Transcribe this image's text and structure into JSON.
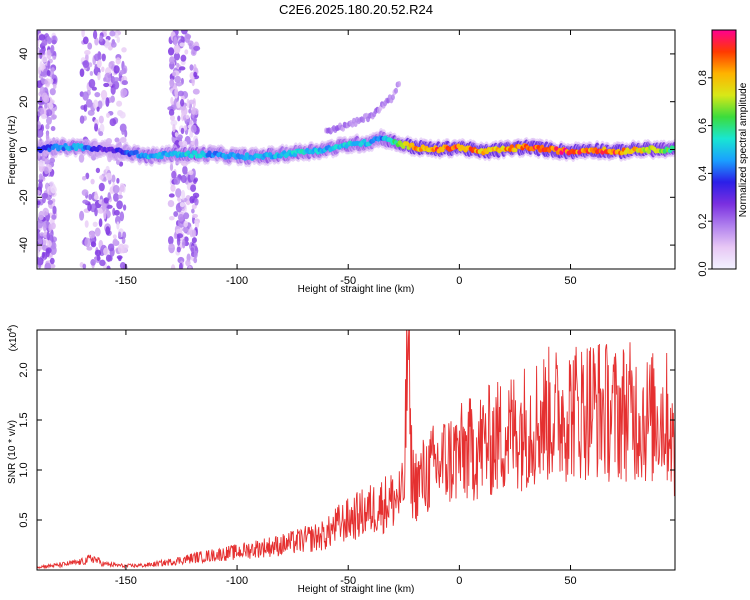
{
  "figure": {
    "title": "C2E6.2025.180.20.52.R24"
  },
  "colors": {
    "snr_line": "#e53030",
    "colormap": [
      "#f2f2ff",
      "#e8c8f5",
      "#b080ee",
      "#7a2fe0",
      "#2b1fe8",
      "#1aa0ff",
      "#19e6d2",
      "#3cdc3c",
      "#d8e818",
      "#ffb300",
      "#ff3a00",
      "#ff0090"
    ]
  },
  "chart_data": [
    {
      "type": "heatmap",
      "title": "C2E6.2025.180.20.52.R24",
      "xlabel": "Height of straight line (km)",
      "ylabel": "Frequency (Hz)",
      "xlim": [
        -190,
        97
      ],
      "ylim": [
        -50,
        50
      ],
      "xticks": [
        -150,
        -100,
        -50,
        0,
        50
      ],
      "xtick_labels": [
        "-150",
        "-100",
        "-50",
        "0",
        "50"
      ],
      "yticks": [
        -40,
        -20,
        0,
        20,
        40
      ],
      "ytick_labels": [
        "-40",
        "-20",
        "0",
        "20",
        "40"
      ],
      "colorbar": {
        "label": "Normalized spectral amplitude",
        "range": [
          0,
          1
        ],
        "ticks": [
          0.0,
          0.2,
          0.4,
          0.6,
          0.8
        ],
        "tick_labels": [
          "0.0",
          "0.2",
          "0.4",
          "0.6",
          "0.8"
        ]
      },
      "ridge": {
        "x": [
          -190,
          -180,
          -170,
          -160,
          -150,
          -140,
          -130,
          -120,
          -110,
          -100,
          -90,
          -80,
          -70,
          -60,
          -50,
          -40,
          -35,
          -30,
          -20,
          -10,
          0,
          10,
          20,
          30,
          40,
          50,
          60,
          70,
          80,
          90,
          97
        ],
        "freq": [
          0,
          1,
          1,
          0,
          -1,
          -3,
          -2,
          -2,
          -2,
          -3,
          -3,
          -2,
          -1,
          0,
          2,
          3,
          5,
          3,
          1,
          0,
          1,
          -1,
          0,
          1,
          0,
          -1,
          0,
          -1,
          0,
          0,
          0
        ],
        "peak_amplitude": [
          0.35,
          0.45,
          0.5,
          0.3,
          0.4,
          0.5,
          0.5,
          0.55,
          0.45,
          0.5,
          0.5,
          0.5,
          0.55,
          0.5,
          0.55,
          0.5,
          0.45,
          0.6,
          0.85,
          0.9,
          0.92,
          0.85,
          0.85,
          0.92,
          0.95,
          0.95,
          0.9,
          0.92,
          0.8,
          0.75,
          0.6
        ]
      },
      "side_branch": {
        "x": [
          -60,
          -50,
          -40,
          -35,
          -30,
          -27
        ],
        "freq": [
          8,
          10,
          14,
          18,
          22,
          28
        ]
      },
      "noise_bands_x": [
        [
          -190,
          -182
        ],
        [
          -170,
          -150
        ],
        [
          -130,
          -118
        ]
      ]
    },
    {
      "type": "line",
      "xlabel": "Height of straight line (km)",
      "ylabel": "SNR (10 * v/v)",
      "yscale_label": "(x10",
      "yscale_exp": "4",
      "scale": 10000,
      "xlim": [
        -190,
        97
      ],
      "ylim": [
        0,
        2.4
      ],
      "xticks": [
        -150,
        -100,
        -50,
        0,
        50
      ],
      "xtick_labels": [
        "-150",
        "-100",
        "-50",
        "0",
        "50"
      ],
      "yticks": [
        0.5,
        1.0,
        1.5,
        2.0
      ],
      "ytick_labels": [
        "0.5",
        "1.0",
        "1.5",
        "2.0"
      ],
      "series": [
        {
          "x": [
            -190,
            -180,
            -170,
            -165,
            -160,
            -150,
            -140,
            -130,
            -120,
            -110,
            -100,
            -90,
            -80,
            -70,
            -60,
            -55,
            -50,
            -45,
            -40,
            -35,
            -30,
            -25,
            -23,
            -22,
            -21,
            -20,
            -15,
            -10,
            -5,
            0,
            5,
            10,
            15,
            20,
            25,
            30,
            35,
            40,
            45,
            50,
            55,
            60,
            65,
            70,
            75,
            80,
            85,
            90,
            95,
            97
          ],
          "y": [
            0.03,
            0.05,
            0.08,
            0.12,
            0.06,
            0.04,
            0.05,
            0.08,
            0.12,
            0.15,
            0.18,
            0.22,
            0.25,
            0.3,
            0.35,
            0.45,
            0.5,
            0.55,
            0.6,
            0.65,
            0.7,
            0.75,
            2.4,
            1.2,
            0.9,
            0.85,
            0.95,
            1.05,
            1.1,
            1.15,
            1.2,
            1.25,
            1.3,
            1.35,
            1.4,
            1.45,
            1.5,
            1.55,
            1.55,
            1.6,
            1.6,
            1.65,
            1.6,
            1.55,
            1.6,
            1.55,
            1.5,
            1.55,
            1.5,
            0.95
          ]
        }
      ]
    }
  ]
}
